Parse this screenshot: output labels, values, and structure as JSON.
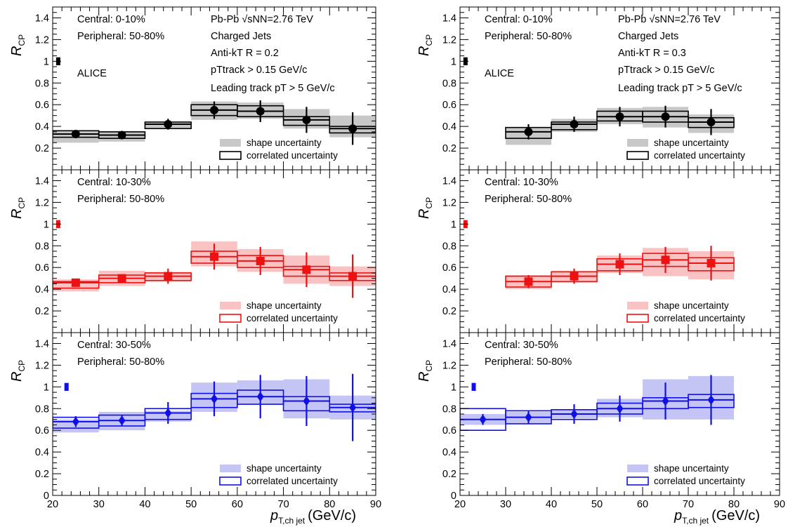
{
  "colors": {
    "black": "#000000",
    "red": "#ee1111",
    "blue": "#1010e6",
    "black_fill": "#c8c8c8",
    "red_fill": "#fac3c3",
    "blue_fill": "#c5c5f5"
  },
  "chart_data": [
    {
      "type": "scatter",
      "panel": "R = 0.2, Central 0-10%",
      "annotations": [
        "Central: 0-10%",
        "Peripheral: 50-80%",
        "Pb-Pb",
        "√sNN=2.76 TeV",
        "Charged Jets",
        "Anti-kT R = 0.2",
        "pTtrack > 0.15 GeV/c",
        "Leading track pT > 5 GeV/c",
        "ALICE"
      ],
      "ylabel": "R_CP",
      "xlim": [
        20,
        90
      ],
      "ylim": [
        0,
        1.5
      ],
      "color": "black",
      "x": [
        25,
        35,
        45,
        55,
        65,
        75,
        85
      ],
      "y": [
        0.33,
        0.32,
        0.42,
        0.55,
        0.54,
        0.46,
        0.38
      ],
      "stat_err": [
        0.03,
        0.02,
        0.05,
        0.08,
        0.1,
        0.12,
        0.15
      ],
      "shape_unc": [
        [
          0.25,
          0.36
        ],
        [
          0.26,
          0.35
        ],
        [
          0.38,
          0.44
        ],
        [
          0.46,
          0.63
        ],
        [
          0.47,
          0.62
        ],
        [
          0.38,
          0.56
        ],
        [
          0.3,
          0.5
        ]
      ],
      "corr_unc": [
        [
          0.3,
          0.36
        ],
        [
          0.29,
          0.35
        ],
        [
          0.38,
          0.44
        ],
        [
          0.5,
          0.6
        ],
        [
          0.49,
          0.59
        ],
        [
          0.41,
          0.49
        ],
        [
          0.34,
          0.4
        ]
      ],
      "norm_unc": [
        0.97,
        1.03
      ],
      "legend": [
        "shape uncertainty",
        "correlated uncertainty"
      ]
    },
    {
      "type": "scatter",
      "panel": "R = 0.2, Central 10-30%",
      "annotations": [
        "Central: 10-30%",
        "Peripheral: 50-80%"
      ],
      "ylabel": "R_CP",
      "xlim": [
        20,
        90
      ],
      "ylim": [
        0,
        1.5
      ],
      "color": "red",
      "x": [
        25,
        35,
        45,
        55,
        65,
        75,
        85
      ],
      "y": [
        0.46,
        0.5,
        0.52,
        0.7,
        0.66,
        0.58,
        0.52
      ],
      "stat_err": [
        0.03,
        0.03,
        0.07,
        0.12,
        0.13,
        0.16,
        0.2
      ],
      "shape_unc": [
        [
          0.38,
          0.49
        ],
        [
          0.43,
          0.57
        ],
        [
          0.47,
          0.56
        ],
        [
          0.61,
          0.84
        ],
        [
          0.56,
          0.77
        ],
        [
          0.45,
          0.71
        ],
        [
          0.43,
          0.61
        ]
      ],
      "corr_unc": [
        [
          0.41,
          0.47
        ],
        [
          0.46,
          0.53
        ],
        [
          0.48,
          0.55
        ],
        [
          0.64,
          0.75
        ],
        [
          0.6,
          0.71
        ],
        [
          0.52,
          0.61
        ],
        [
          0.48,
          0.55
        ]
      ],
      "norm_unc": [
        0.97,
        1.03
      ],
      "legend": [
        "shape uncertainty",
        "correlated uncertainty"
      ]
    },
    {
      "type": "scatter",
      "panel": "R = 0.2, Central 30-50%",
      "annotations": [
        "Central: 30-50%",
        "Peripheral: 50-80%"
      ],
      "ylabel": "R_CP",
      "xlabel": "p_T,ch jet (GeV/c)",
      "xlim": [
        20,
        90
      ],
      "ylim": [
        0,
        1.5
      ],
      "color": "blue",
      "x": [
        25,
        35,
        45,
        55,
        65,
        75,
        85
      ],
      "y": [
        0.68,
        0.69,
        0.76,
        0.89,
        0.91,
        0.87,
        0.81
      ],
      "stat_err": [
        0.05,
        0.05,
        0.1,
        0.16,
        0.2,
        0.23,
        0.31
      ],
      "shape_unc": [
        [
          0.58,
          0.7
        ],
        [
          0.6,
          0.77
        ],
        [
          0.68,
          0.78
        ],
        [
          0.77,
          1.04
        ],
        [
          0.84,
          1.06
        ],
        [
          0.71,
          1.07
        ],
        [
          0.7,
          0.92
        ]
      ],
      "corr_unc": [
        [
          0.62,
          0.72
        ],
        [
          0.64,
          0.74
        ],
        [
          0.7,
          0.8
        ],
        [
          0.81,
          0.94
        ],
        [
          0.84,
          0.97
        ],
        [
          0.78,
          0.91
        ],
        [
          0.77,
          0.84
        ]
      ],
      "norm_unc": [
        0.97,
        1.03
      ],
      "legend": [
        "shape uncertainty",
        "correlated uncertainty"
      ]
    },
    {
      "type": "scatter",
      "panel": "R = 0.3, Central 0-10%",
      "annotations": [
        "Central: 0-10%",
        "Peripheral: 50-80%",
        "Pb-Pb",
        "√sNN=2.76 TeV",
        "Charged Jets",
        "Anti-kT R = 0.3",
        "pTtrack > 0.15 GeV/c",
        "Leading track pT > 5 GeV/c",
        "ALICE"
      ],
      "ylabel": "R_CP",
      "xlim": [
        20,
        90
      ],
      "ylim": [
        0,
        1.5
      ],
      "color": "black",
      "x": [
        35,
        45,
        55,
        65,
        75
      ],
      "y": [
        0.35,
        0.42,
        0.49,
        0.49,
        0.44
      ],
      "stat_err": [
        0.07,
        0.07,
        0.09,
        0.1,
        0.12
      ],
      "shape_unc": [
        [
          0.23,
          0.39
        ],
        [
          0.35,
          0.47
        ],
        [
          0.42,
          0.57
        ],
        [
          0.39,
          0.58
        ],
        [
          0.34,
          0.51
        ]
      ],
      "corr_unc": [
        [
          0.29,
          0.39
        ],
        [
          0.37,
          0.44
        ],
        [
          0.45,
          0.54
        ],
        [
          0.44,
          0.54
        ],
        [
          0.39,
          0.48
        ]
      ],
      "norm_unc": [
        0.97,
        1.03
      ],
      "legend": [
        "shape uncertainty",
        "correlated uncertainty"
      ]
    },
    {
      "type": "scatter",
      "panel": "R = 0.3, Central 10-30%",
      "annotations": [
        "Central: 10-30%",
        "Peripheral: 50-80%"
      ],
      "ylabel": "R_CP",
      "xlim": [
        20,
        90
      ],
      "ylim": [
        0,
        1.5
      ],
      "color": "red",
      "x": [
        35,
        45,
        55,
        65,
        75
      ],
      "y": [
        0.47,
        0.52,
        0.63,
        0.67,
        0.64
      ],
      "stat_err": [
        0.06,
        0.07,
        0.1,
        0.12,
        0.16
      ],
      "shape_unc": [
        [
          0.4,
          0.53
        ],
        [
          0.46,
          0.57
        ],
        [
          0.55,
          0.71
        ],
        [
          0.52,
          0.78
        ],
        [
          0.49,
          0.75
        ]
      ],
      "corr_unc": [
        [
          0.42,
          0.52
        ],
        [
          0.47,
          0.56
        ],
        [
          0.57,
          0.68
        ],
        [
          0.61,
          0.73
        ],
        [
          0.57,
          0.69
        ]
      ],
      "norm_unc": [
        0.97,
        1.03
      ],
      "legend": [
        "shape uncertainty",
        "correlated uncertainty"
      ]
    },
    {
      "type": "scatter",
      "panel": "R = 0.3, Central 30-50%",
      "annotations": [
        "Central: 30-50%",
        "Peripheral: 50-80%"
      ],
      "ylabel": "R_CP",
      "xlabel": "p_T,ch jet (GeV/c)",
      "xlim": [
        20,
        90
      ],
      "ylim": [
        0,
        1.5
      ],
      "color": "blue",
      "x": [
        25,
        35,
        45,
        55,
        65,
        75
      ],
      "y": [
        0.7,
        0.72,
        0.75,
        0.8,
        0.87,
        0.88
      ],
      "stat_err": [
        0.05,
        0.06,
        0.09,
        0.12,
        0.17,
        0.23
      ],
      "shape_unc": [
        [
          0.65,
          0.75
        ],
        [
          0.66,
          0.77
        ],
        [
          0.71,
          0.79
        ],
        [
          0.72,
          0.89
        ],
        [
          0.7,
          1.07
        ],
        [
          0.7,
          1.1
        ]
      ],
      "corr_unc": [
        [
          0.6,
          0.8
        ],
        [
          0.66,
          0.78
        ],
        [
          0.7,
          0.79
        ],
        [
          0.75,
          0.85
        ],
        [
          0.8,
          0.9
        ],
        [
          0.81,
          0.93
        ]
      ],
      "norm_unc": [
        0.97,
        1.03
      ],
      "legend": [
        "shape uncertainty",
        "correlated uncertainty"
      ]
    }
  ],
  "labels": {
    "ytitle_main": "R",
    "ytitle_sub": "CP",
    "xtitle_main": "p",
    "xtitle_sub": "T,ch jet",
    "xtitle_unit": "(GeV/c)",
    "yticks": [
      "0",
      "0.2",
      "0.4",
      "0.6",
      "0.8",
      "1",
      "1.2",
      "1.4"
    ],
    "xticks": [
      "20",
      "30",
      "40",
      "50",
      "60",
      "70",
      "80",
      "90"
    ]
  }
}
